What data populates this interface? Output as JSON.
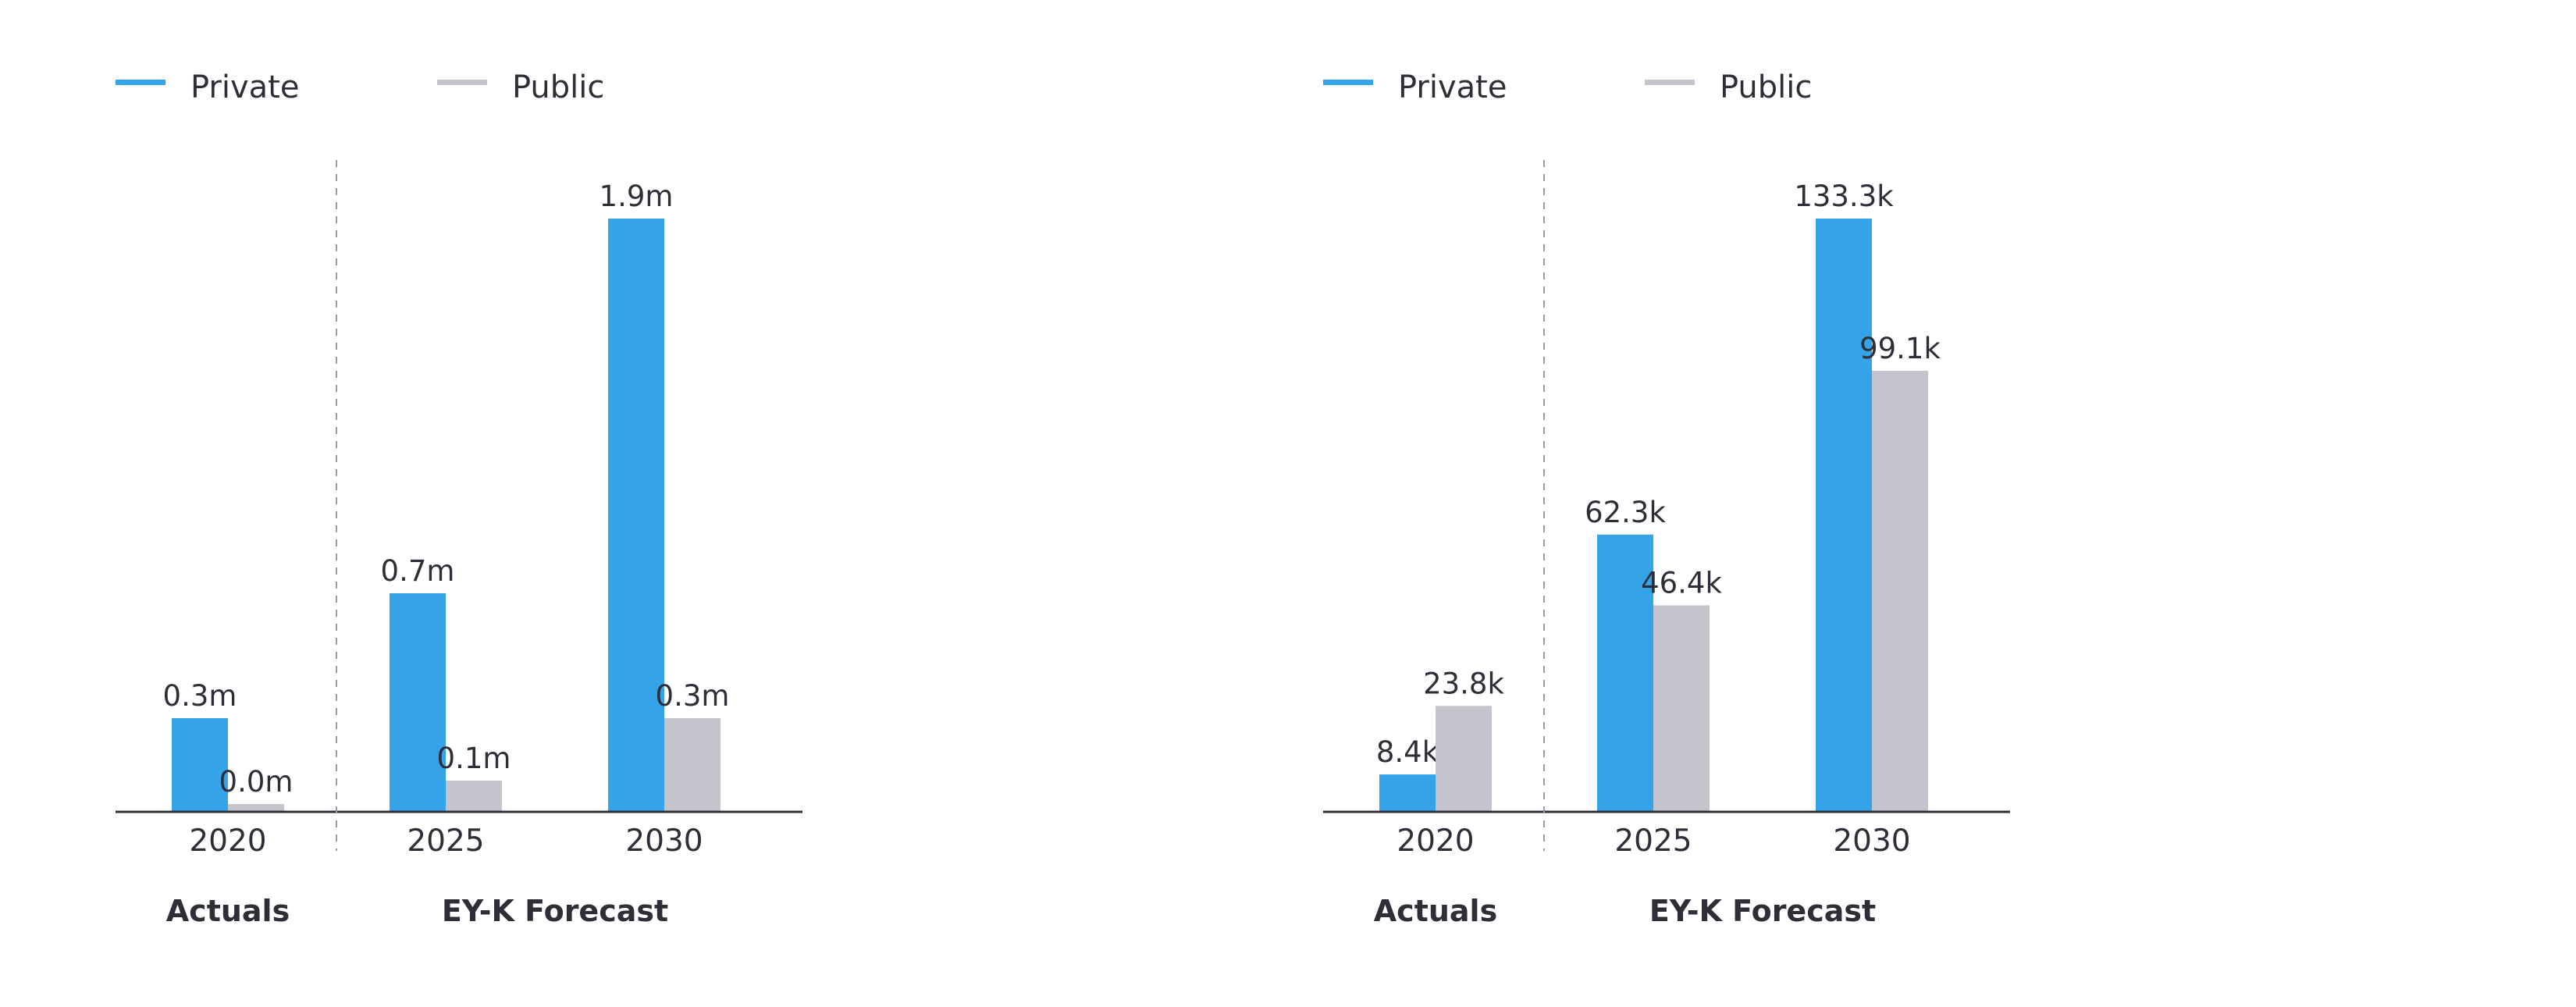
{
  "colors": {
    "private": "#35a3e8",
    "public": "#c4c4cc",
    "axis": "#2e2e38",
    "divider": "#9a9aa2",
    "text": "#2e2e38"
  },
  "chart_data": [
    {
      "type": "bar",
      "categories": [
        "2020",
        "2025",
        "2030"
      ],
      "series": [
        {
          "name": "Private",
          "values": [
            0.3,
            0.7,
            1.9
          ],
          "labels": [
            "0.3m",
            "0.7m",
            "1.9m"
          ]
        },
        {
          "name": "Public",
          "values": [
            0.02,
            0.1,
            0.3
          ],
          "labels": [
            "0.0m",
            "0.1m",
            "0.3m"
          ]
        }
      ],
      "groups": [
        "Actuals",
        "EY-K Forecast"
      ],
      "ylim": [
        0,
        1.9
      ],
      "legend": "top-left",
      "grid": false
    },
    {
      "type": "bar",
      "categories": [
        "2020",
        "2025",
        "2030"
      ],
      "series": [
        {
          "name": "Private",
          "values": [
            8.4,
            62.3,
            133.3
          ],
          "labels": [
            "8.4k",
            "62.3k",
            "133.3k"
          ]
        },
        {
          "name": "Public",
          "values": [
            23.8,
            46.4,
            99.1
          ],
          "labels": [
            "23.8k",
            "46.4k",
            "99.1k"
          ]
        }
      ],
      "groups": [
        "Actuals",
        "EY-K Forecast"
      ],
      "ylim": [
        0,
        133.3
      ],
      "legend": "top-left",
      "grid": false
    }
  ]
}
